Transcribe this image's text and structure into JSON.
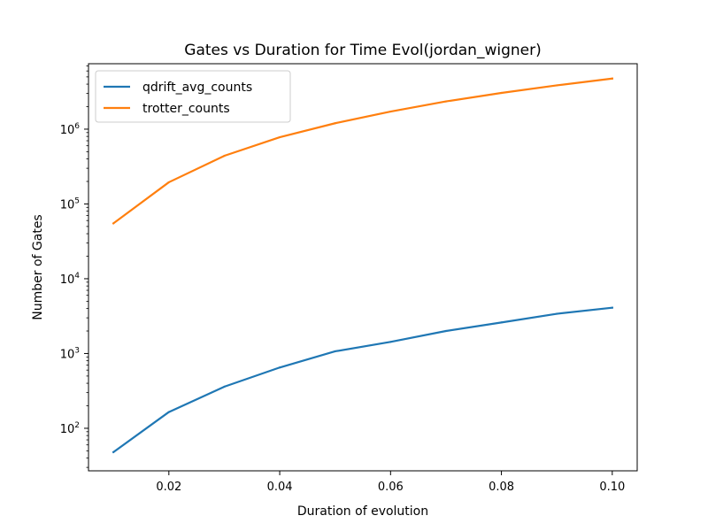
{
  "chart_data": {
    "type": "line",
    "title": "Gates vs Duration for Time Evol(jordan_wigner)",
    "xlabel": "Duration of evolution",
    "ylabel": "Number of Gates",
    "yscale": "log",
    "xlim": [
      0.0055,
      0.1045
    ],
    "ylim": [
      27,
      7500000
    ],
    "x": [
      0.01,
      0.02,
      0.03,
      0.04,
      0.05,
      0.06,
      0.07,
      0.08,
      0.09,
      0.1
    ],
    "xticks": [
      0.02,
      0.04,
      0.06,
      0.08,
      0.1
    ],
    "xtick_labels": [
      "0.02",
      "0.04",
      "0.06",
      "0.08",
      "0.10"
    ],
    "yticks": [
      {
        "value": 100,
        "base": "10",
        "exp": "2"
      },
      {
        "value": 1000,
        "base": "10",
        "exp": "3"
      },
      {
        "value": 10000,
        "base": "10",
        "exp": "4"
      },
      {
        "value": 100000,
        "base": "10",
        "exp": "5"
      },
      {
        "value": 1000000,
        "base": "10",
        "exp": "6"
      }
    ],
    "grid": false,
    "legend_loc": "upper-left",
    "series": [
      {
        "name": "qdrift_avg_counts",
        "color": "#1f77b4",
        "values": [
          48,
          165,
          360,
          650,
          1070,
          1430,
          2000,
          2600,
          3400,
          4100
        ]
      },
      {
        "name": "trotter_counts",
        "color": "#ff7f0e",
        "values": [
          55000,
          195000,
          440000,
          780000,
          1200000,
          1720000,
          2350000,
          3050000,
          3850000,
          4750000
        ]
      }
    ]
  }
}
